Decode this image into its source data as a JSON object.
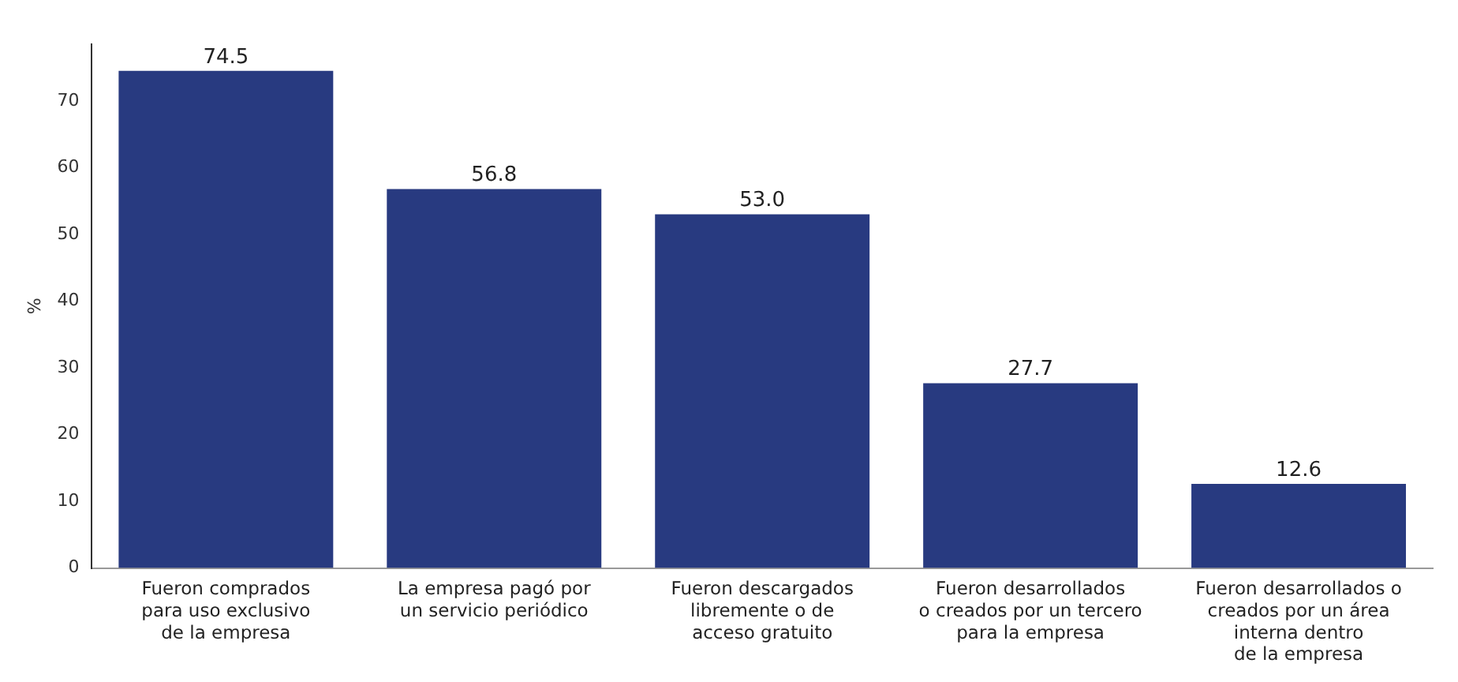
{
  "chart_data": {
    "type": "bar",
    "ylabel": "%",
    "categories": [
      "Fueron comprados\npara uso exclusivo\nde la empresa",
      "La empresa pagó por\nun servicio periódico",
      "Fueron descargados\nlibremente o de\nacceso gratuito",
      "Fueron desarrollados\no creados por un tercero\npara la empresa",
      "Fueron desarrollados o\ncreados por un área\ninterna dentro\nde la empresa"
    ],
    "values": [
      74.5,
      56.8,
      53.0,
      27.7,
      12.6
    ],
    "color": "#283a80",
    "ylim": [
      0,
      78.5
    ],
    "yticks": [
      0,
      10,
      20,
      30,
      40,
      50,
      60,
      70
    ],
    "value_labels": [
      "74.5",
      "56.8",
      "53.0",
      "27.7",
      "12.6"
    ],
    "grid": false,
    "legend": false
  }
}
